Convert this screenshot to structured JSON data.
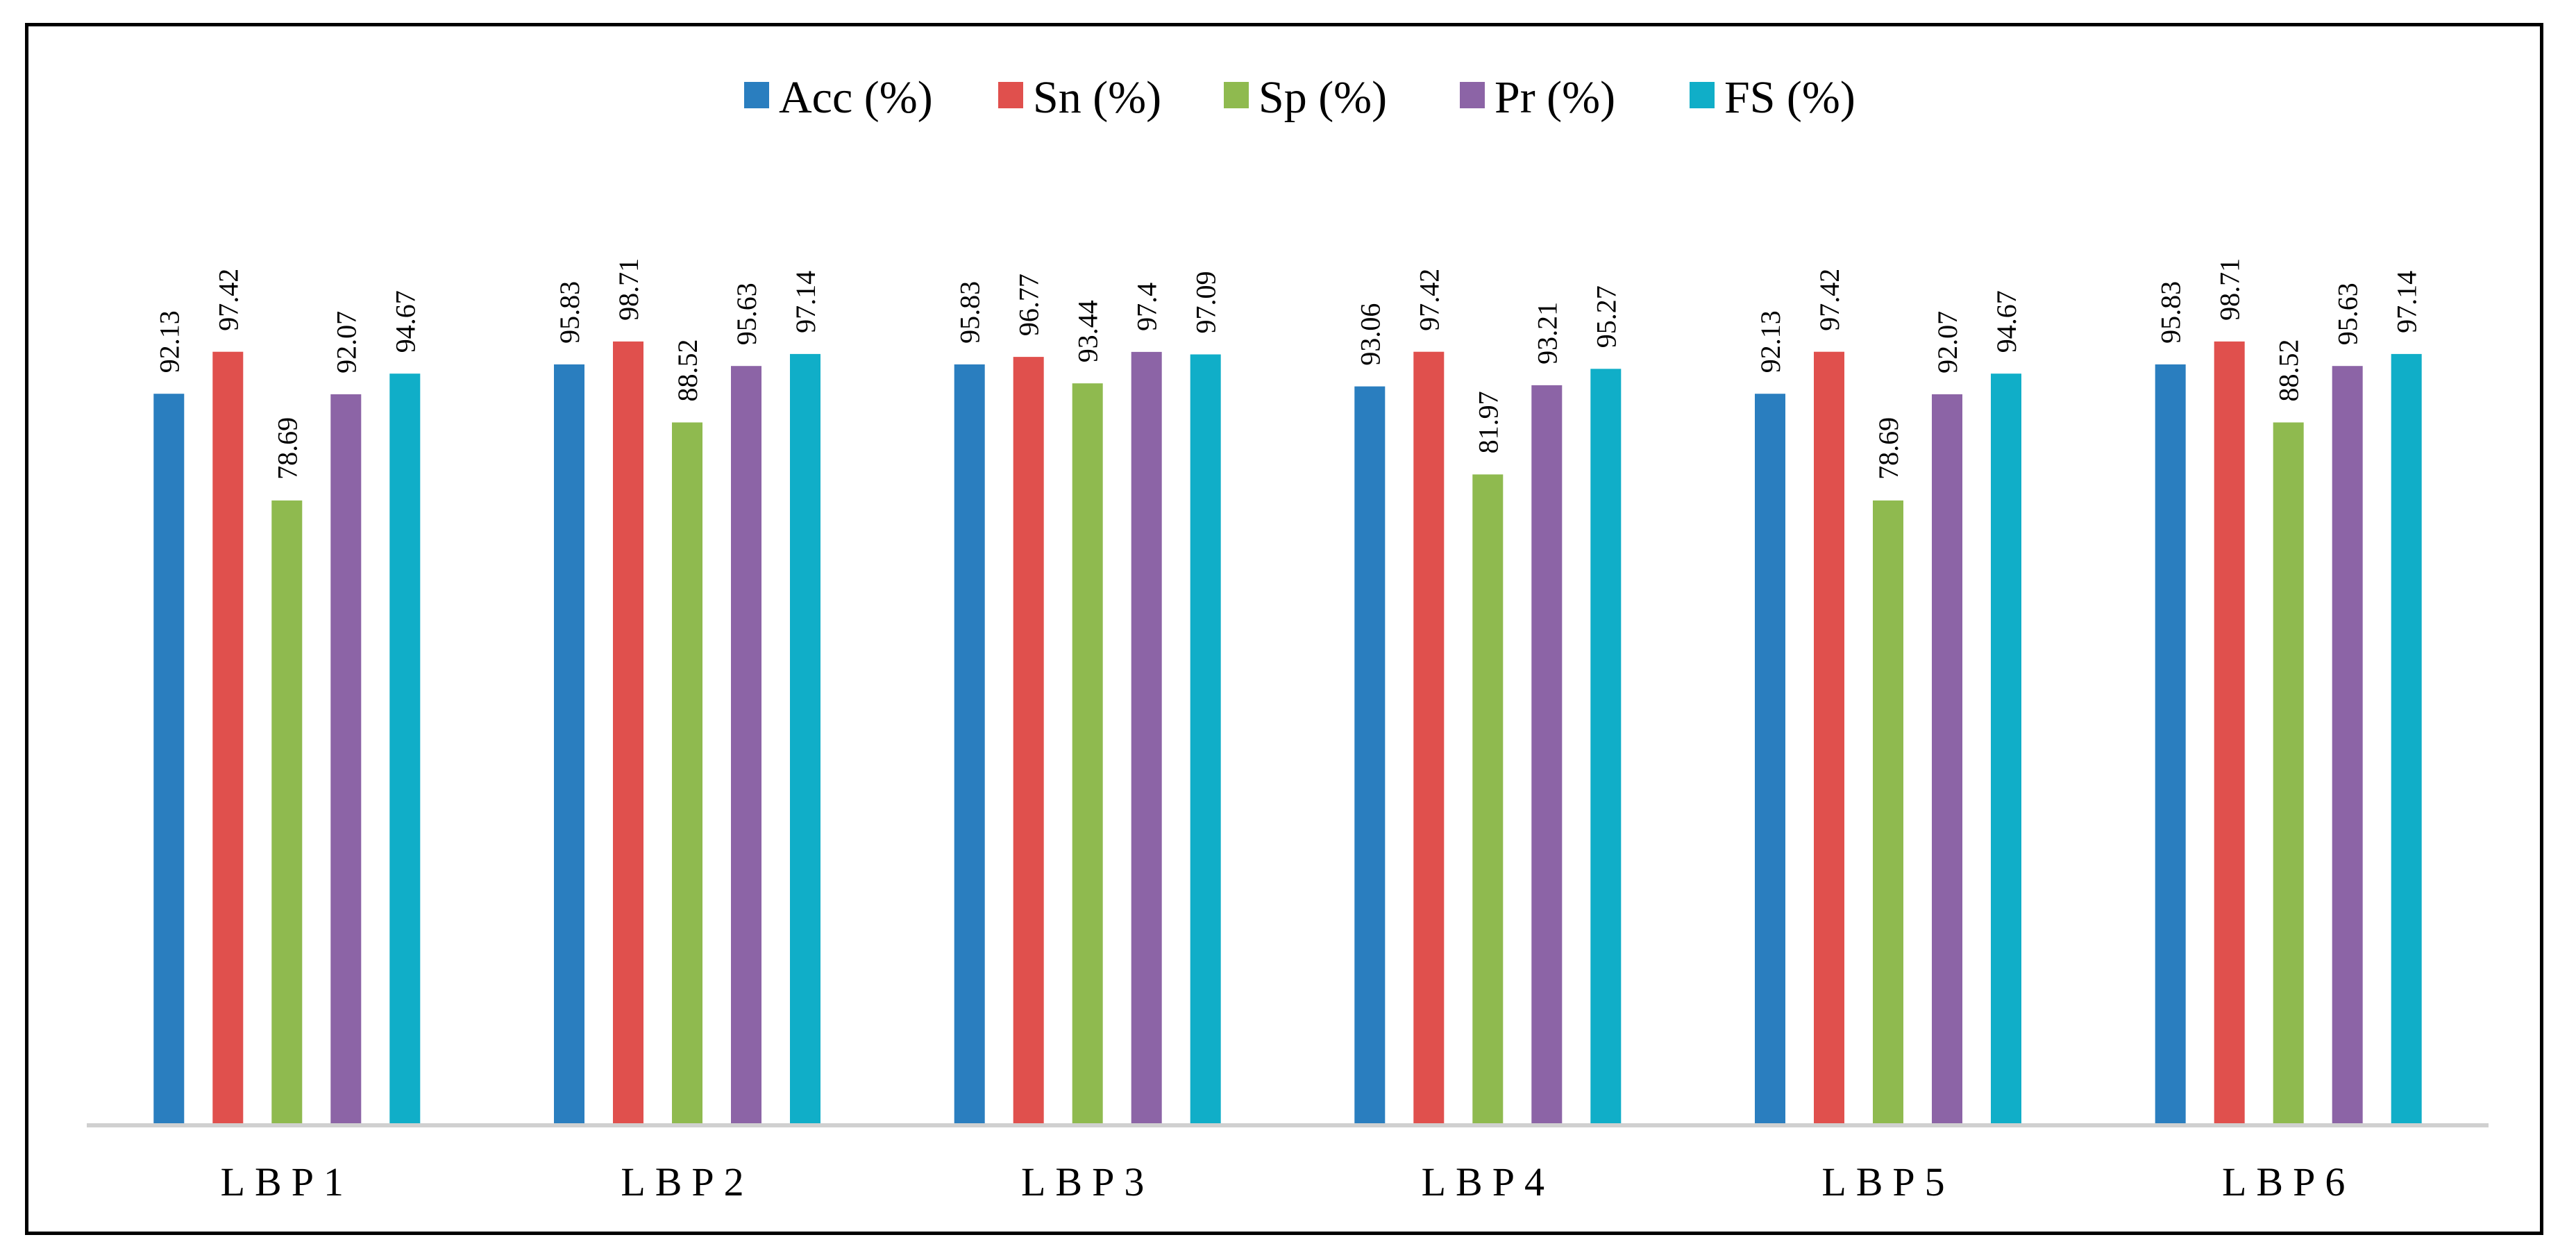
{
  "chart_data": {
    "type": "bar",
    "title": "",
    "xlabel": "",
    "ylabel": "",
    "ylim": [
      0,
      105
    ],
    "grid": false,
    "legend_position": "top-center",
    "categories": [
      "LBP1",
      "LBP2",
      "LBP3",
      "LBP4",
      "LBP5",
      "LBP6"
    ],
    "series": [
      {
        "name": "Acc (%)",
        "color": "#2A7EBF",
        "values": [
          92.13,
          95.83,
          95.83,
          93.06,
          92.13,
          95.83
        ],
        "labels": [
          "92.13",
          "95.83",
          "95.83",
          "93.06",
          "92.13",
          "95.83"
        ]
      },
      {
        "name": "Sn (%)",
        "color": "#E0504D",
        "values": [
          97.42,
          98.71,
          96.77,
          97.42,
          97.42,
          98.71
        ],
        "labels": [
          "97.42",
          "98.71",
          "96.77",
          "97.42",
          "97.42",
          "98.71"
        ]
      },
      {
        "name": "Sp (%)",
        "color": "#8FBA4F",
        "values": [
          78.69,
          88.52,
          93.44,
          81.97,
          78.69,
          88.52
        ],
        "labels": [
          "78.69",
          "88.52",
          "93.44",
          "81.97",
          "78.69",
          "88.52"
        ]
      },
      {
        "name": "Pr (%)",
        "color": "#8C64A6",
        "values": [
          92.07,
          95.63,
          97.4,
          93.21,
          92.07,
          95.63
        ],
        "labels": [
          "92.07",
          "95.63",
          "97.4",
          "93.21",
          "92.07",
          "95.63"
        ]
      },
      {
        "name": "FS (%)",
        "color": "#10AEC8",
        "values": [
          94.67,
          97.14,
          97.09,
          95.27,
          94.67,
          97.14
        ],
        "labels": [
          "94.67",
          "97.14",
          "97.09",
          "95.27",
          "94.67",
          "97.14"
        ]
      }
    ]
  }
}
